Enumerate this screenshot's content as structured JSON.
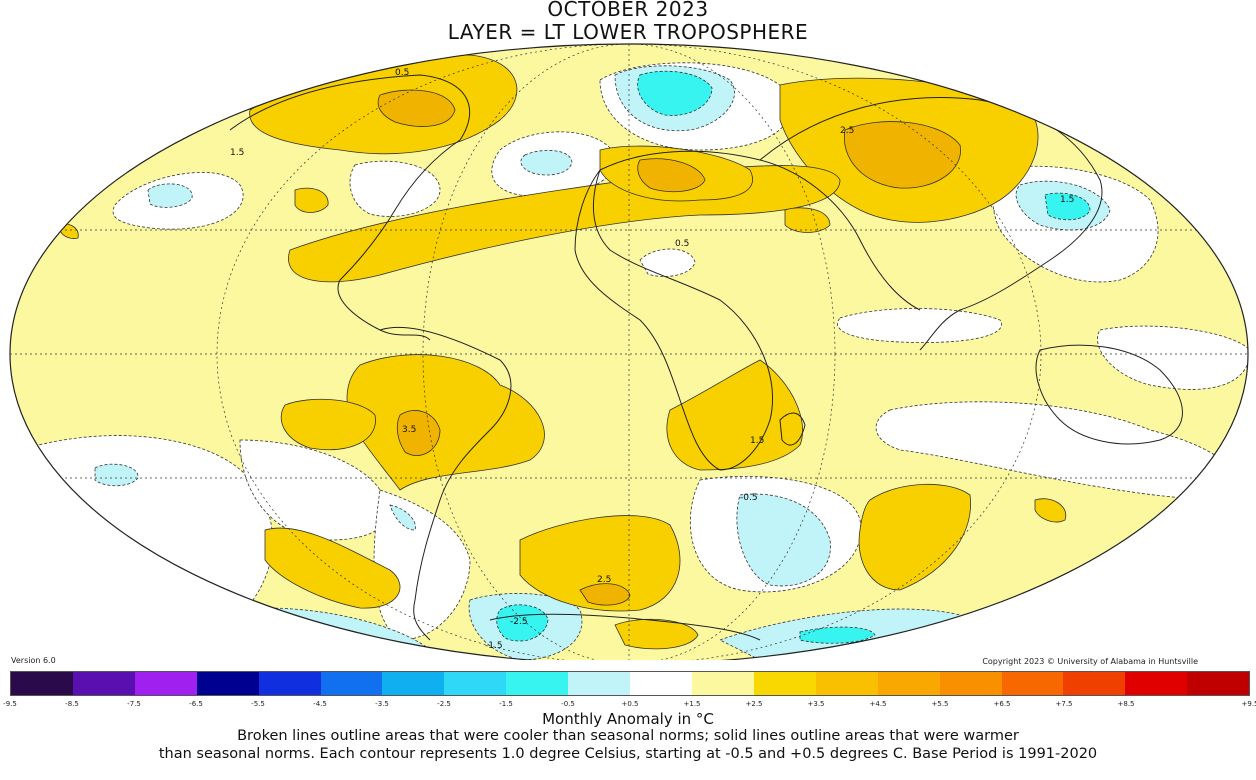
{
  "title": "OCTOBER 2023",
  "subtitle": "LAYER = LT LOWER TROPOSPHERE",
  "version": "Version 6.0",
  "copyright": "Copyright 2023 © University of Alabama in Huntsville",
  "colorbar": {
    "label": "Monthly Anomaly in °C",
    "ticks": [
      "-9.5",
      "-8.5",
      "-7.5",
      "-6.5",
      "-5.5",
      "-4.5",
      "-3.5",
      "-2.5",
      "-1.5",
      "-0.5",
      "+0.5",
      "+1.5",
      "+2.5",
      "+3.5",
      "+4.5",
      "+5.5",
      "+6.5",
      "+7.5",
      "+8.5",
      "+9.5"
    ],
    "colors": [
      "#2a0a4a",
      "#5a10b0",
      "#a020f0",
      "#000090",
      "#1030e0",
      "#1070f0",
      "#10b0f0",
      "#30d8f8",
      "#38f4f0",
      "#c0f4f8",
      "#ffffff",
      "#fcf8a0",
      "#f8d800",
      "#f8c000",
      "#f8a800",
      "#f89000",
      "#f86800",
      "#f04000",
      "#e00000",
      "#c00000"
    ]
  },
  "note_line1": "Broken lines outline areas that were cooler than seasonal norms; solid lines outline areas that were warmer",
  "note_line2": "than seasonal norms. Each contour represents 1.0 degree Celsius, starting at -0.5 and +0.5 degrees C. Base Period is 1991-2020",
  "map_labels": [
    "0.5",
    "1.5",
    "2.5",
    "3.5",
    "-0.5",
    "1.5",
    "0.5",
    "2.5",
    "1.5",
    "-1.5",
    "-2.5"
  ]
}
